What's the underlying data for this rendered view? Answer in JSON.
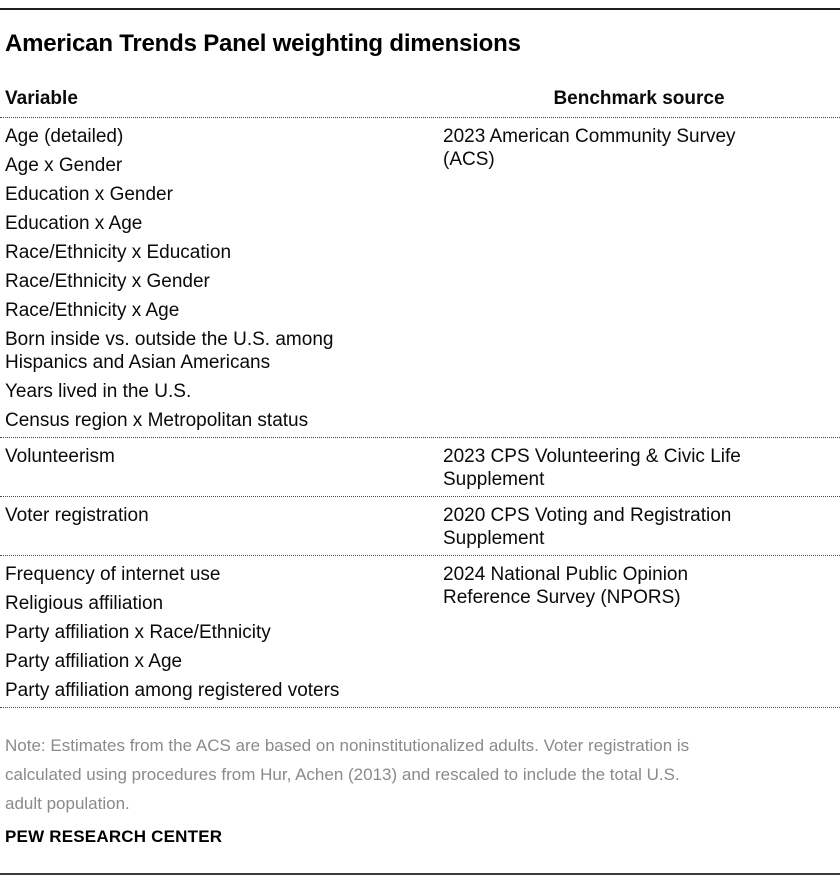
{
  "title": "American Trends Panel weighting dimensions",
  "table": {
    "headers": {
      "variable": "Variable",
      "benchmark": "Benchmark source"
    },
    "sections": [
      {
        "variables": [
          "Age (detailed)",
          "Age x Gender",
          "Education x Gender",
          "Education x Age",
          "Race/Ethnicity x Education",
          "Race/Ethnicity x Gender",
          "Race/Ethnicity x Age",
          "Born inside vs. outside the U.S. among\nHispanics and Asian Americans",
          "Years lived in the U.S.",
          "Census region x Metropolitan status"
        ],
        "source": "2023 American Community Survey\n(ACS)"
      },
      {
        "variables": [
          "Volunteerism"
        ],
        "source": "2023 CPS Volunteering & Civic Life\nSupplement"
      },
      {
        "variables": [
          "Voter registration"
        ],
        "source": "2020 CPS Voting and Registration\nSupplement"
      },
      {
        "variables": [
          "Frequency of internet use",
          "Religious affiliation",
          "Party affiliation x Race/Ethnicity",
          "Party affiliation x Age",
          "Party affiliation among registered voters"
        ],
        "source": "2024 National Public Opinion\nReference Survey (NPORS)"
      }
    ]
  },
  "note": "Note: Estimates from the ACS are based on noninstitutionalized adults. Voter registration is\ncalculated using procedures from Hur, Achen (2013) and rescaled to include the total U.S.\nadult population.",
  "footer": "PEW RESEARCH CENTER",
  "colors": {
    "text": "#0a0a0a",
    "note_gray": "#8a8a8a",
    "rule_solid": "#1f1f1f",
    "rule_dotted": "#4a4a4a",
    "background": "#ffffff"
  },
  "chart_data": {
    "type": "table",
    "title": "American Trends Panel weighting dimensions",
    "columns": [
      "Variable",
      "Benchmark source"
    ],
    "rows": [
      [
        "Age (detailed)",
        "2023 American Community Survey (ACS)"
      ],
      [
        "Age x Gender",
        "2023 American Community Survey (ACS)"
      ],
      [
        "Education x Gender",
        "2023 American Community Survey (ACS)"
      ],
      [
        "Education x Age",
        "2023 American Community Survey (ACS)"
      ],
      [
        "Race/Ethnicity x Education",
        "2023 American Community Survey (ACS)"
      ],
      [
        "Race/Ethnicity x Gender",
        "2023 American Community Survey (ACS)"
      ],
      [
        "Race/Ethnicity x Age",
        "2023 American Community Survey (ACS)"
      ],
      [
        "Born inside vs. outside the U.S. among Hispanics and Asian Americans",
        "2023 American Community Survey (ACS)"
      ],
      [
        "Years lived in the U.S.",
        "2023 American Community Survey (ACS)"
      ],
      [
        "Census region x Metropolitan status",
        "2023 American Community Survey (ACS)"
      ],
      [
        "Volunteerism",
        "2023 CPS Volunteering & Civic Life Supplement"
      ],
      [
        "Voter registration",
        "2020 CPS Voting and Registration Supplement"
      ],
      [
        "Frequency of internet use",
        "2024 National Public Opinion Reference Survey (NPORS)"
      ],
      [
        "Religious affiliation",
        "2024 National Public Opinion Reference Survey (NPORS)"
      ],
      [
        "Party affiliation x Race/Ethnicity",
        "2024 National Public Opinion Reference Survey (NPORS)"
      ],
      [
        "Party affiliation x Age",
        "2024 National Public Opinion Reference Survey (NPORS)"
      ],
      [
        "Party affiliation among registered voters",
        "2024 National Public Opinion Reference Survey (NPORS)"
      ]
    ],
    "note": "Note: Estimates from the ACS are based on noninstitutionalized adults. Voter registration is calculated using procedures from Hur, Achen (2013) and rescaled to include the total U.S. adult population.",
    "source_label": "PEW RESEARCH CENTER"
  }
}
